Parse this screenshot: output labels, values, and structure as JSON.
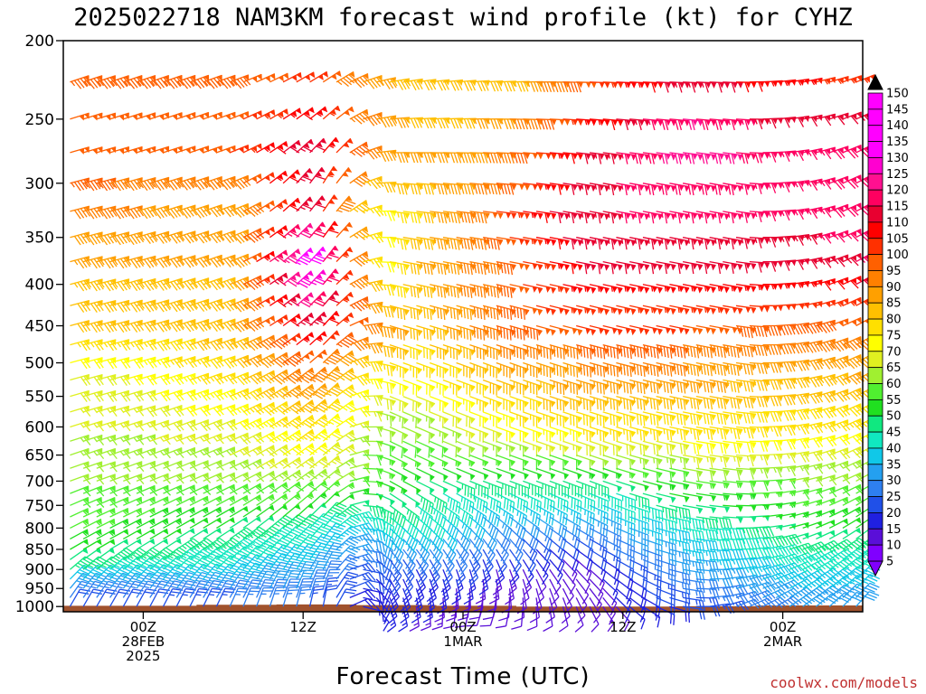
{
  "colors": {
    "ground": "#a0522d",
    "credit": "#c03030",
    "scale": [
      "#8000ff",
      "#5a0fd8",
      "#2020e0",
      "#2050e8",
      "#2e7ff0",
      "#24a0f0",
      "#10c8e8",
      "#10e8c0",
      "#10e880",
      "#20e020",
      "#50f030",
      "#a0f030",
      "#e0f020",
      "#ffff00",
      "#ffe000",
      "#ffc000",
      "#ffa000",
      "#ff8000",
      "#ff6000",
      "#ff3000",
      "#ff0000",
      "#e80030",
      "#ff0060",
      "#ff1090",
      "#ff00d0",
      "#ff00ff",
      "#000000"
    ]
  },
  "chart_data": {
    "type": "wind-barb-time-height",
    "title": "2025022718 NAM3KM forecast wind profile (kt) for CYHZ",
    "xlabel": "Forecast Time (UTC)",
    "ylabel": "",
    "credit": "coolwx.com/models",
    "x_ticks": [
      {
        "hour": 6,
        "lines": [
          "00Z",
          "28FEB",
          "2025"
        ]
      },
      {
        "hour": 18,
        "lines": [
          "12Z"
        ]
      },
      {
        "hour": 30,
        "lines": [
          "00Z",
          "1MAR"
        ]
      },
      {
        "hour": 42,
        "lines": [
          "12Z"
        ]
      },
      {
        "hour": 54,
        "lines": [
          "00Z",
          "2MAR"
        ]
      }
    ],
    "x_range_hours": [
      0,
      60
    ],
    "x_step_hours": 1,
    "y_ticks": [
      200,
      250,
      300,
      350,
      400,
      450,
      500,
      550,
      600,
      650,
      700,
      750,
      800,
      850,
      900,
      950,
      1000
    ],
    "y_range_hpa": [
      200,
      1015
    ],
    "y_scale": "log-pressure",
    "barb_levels": [
      1000,
      975,
      950,
      925,
      900,
      875,
      850,
      825,
      800,
      775,
      750,
      725,
      700,
      675,
      650,
      625,
      600,
      575,
      550,
      525,
      500,
      475,
      450,
      425,
      400,
      375,
      350,
      325,
      300,
      275,
      250,
      225
    ],
    "colorbar": {
      "labels": [
        "150",
        "145",
        "140",
        "135",
        "130",
        "125",
        "120",
        "115",
        "110",
        "105",
        "100",
        "95",
        "90",
        "85",
        "80",
        "75",
        "70",
        "65",
        "60",
        "55",
        "50",
        "45",
        "40",
        "35",
        "30",
        "25",
        "20",
        "15",
        "10",
        "5"
      ],
      "min_kt": 5,
      "max_kt": 150,
      "step_kt": 5
    },
    "surface_pressure_hpa": [
      {
        "hour": 3,
        "p": 998
      },
      {
        "hour": 10,
        "p": 998
      },
      {
        "hour": 16,
        "p": 995
      },
      {
        "hour": 22,
        "p": 994
      },
      {
        "hour": 28,
        "p": 996
      },
      {
        "hour": 34,
        "p": 998
      },
      {
        "hour": 40,
        "p": 1000
      },
      {
        "hour": 46,
        "p": 1000
      },
      {
        "hour": 52,
        "p": 999
      },
      {
        "hour": 60,
        "p": 997
      }
    ],
    "wind_profile": {
      "direction_deg": [
        {
          "hour": 3,
          "levels": [
            200,
            300,
            500,
            700,
            850,
            1000
          ],
          "deg": [
            250,
            255,
            255,
            250,
            240,
            210
          ]
        },
        {
          "hour": 12,
          "levels": [
            200,
            300,
            500,
            700,
            850,
            1000
          ],
          "deg": [
            250,
            250,
            250,
            245,
            235,
            205
          ]
        },
        {
          "hour": 20,
          "levels": [
            200,
            300,
            500,
            700,
            850,
            1000
          ],
          "deg": [
            245,
            210,
            225,
            230,
            215,
            190
          ]
        },
        {
          "hour": 24,
          "levels": [
            200,
            300,
            500,
            700,
            850,
            1000
          ],
          "deg": [
            255,
            275,
            290,
            300,
            320,
            340
          ]
        },
        {
          "hour": 32,
          "levels": [
            200,
            300,
            500,
            700,
            850,
            1000
          ],
          "deg": [
            265,
            275,
            290,
            290,
            330,
            20
          ]
        },
        {
          "hour": 40,
          "levels": [
            200,
            300,
            500,
            700,
            850,
            1000
          ],
          "deg": [
            270,
            280,
            285,
            290,
            300,
            330
          ]
        },
        {
          "hour": 50,
          "levels": [
            200,
            300,
            500,
            700,
            850,
            1000
          ],
          "deg": [
            270,
            280,
            280,
            275,
            270,
            250
          ]
        },
        {
          "hour": 60,
          "levels": [
            200,
            300,
            500,
            700,
            850,
            1000
          ],
          "deg": [
            250,
            240,
            240,
            240,
            230,
            220
          ]
        }
      ],
      "speed_kt": [
        {
          "hour": 3,
          "levels": [
            200,
            270,
            330,
            380,
            450,
            500,
            600,
            700,
            800,
            900,
            1000
          ],
          "kt": [
            95,
            100,
            90,
            85,
            80,
            70,
            65,
            60,
            55,
            45,
            20
          ]
        },
        {
          "hour": 12,
          "levels": [
            200,
            270,
            330,
            380,
            450,
            500,
            600,
            700,
            800,
            900,
            1000
          ],
          "kt": [
            95,
            100,
            85,
            85,
            85,
            80,
            70,
            60,
            50,
            40,
            25
          ]
        },
        {
          "hour": 18,
          "levels": [
            200,
            270,
            330,
            380,
            450,
            500,
            600,
            700,
            800,
            900,
            1000
          ],
          "kt": [
            95,
            115,
            115,
            140,
            115,
            100,
            80,
            65,
            45,
            35,
            25
          ]
        },
        {
          "hour": 23,
          "levels": [
            200,
            270,
            330,
            380,
            450,
            500,
            600,
            700,
            800,
            900,
            1000
          ],
          "kt": [
            85,
            90,
            70,
            70,
            90,
            75,
            60,
            55,
            35,
            20,
            15
          ]
        },
        {
          "hour": 26,
          "levels": [
            200,
            270,
            330,
            380,
            450,
            500,
            600,
            700,
            800,
            900,
            1000
          ],
          "kt": [
            80,
            85,
            80,
            85,
            80,
            75,
            60,
            50,
            40,
            20,
            15
          ]
        },
        {
          "hour": 32,
          "levels": [
            200,
            270,
            330,
            380,
            450,
            500,
            600,
            700,
            800,
            900,
            1000
          ],
          "kt": [
            75,
            90,
            100,
            95,
            95,
            85,
            70,
            45,
            30,
            15,
            10
          ]
        },
        {
          "hour": 38,
          "levels": [
            200,
            270,
            330,
            380,
            450,
            500,
            600,
            700,
            800,
            900,
            1000
          ],
          "kt": [
            90,
            110,
            115,
            110,
            100,
            90,
            75,
            45,
            25,
            10,
            10
          ]
        },
        {
          "hour": 46,
          "levels": [
            200,
            270,
            330,
            380,
            450,
            500,
            600,
            700,
            800,
            900,
            1000
          ],
          "kt": [
            110,
            125,
            115,
            110,
            100,
            90,
            75,
            55,
            40,
            30,
            20
          ]
        },
        {
          "hour": 54,
          "levels": [
            200,
            270,
            330,
            380,
            450,
            500,
            600,
            700,
            800,
            900,
            1000
          ],
          "kt": [
            100,
            115,
            115,
            110,
            95,
            85,
            75,
            60,
            50,
            40,
            30
          ]
        },
        {
          "hour": 60,
          "levels": [
            200,
            270,
            330,
            380,
            450,
            500,
            600,
            700,
            800,
            900,
            1000
          ],
          "kt": [
            95,
            120,
            120,
            115,
            100,
            90,
            75,
            60,
            50,
            40,
            30
          ]
        }
      ]
    }
  }
}
